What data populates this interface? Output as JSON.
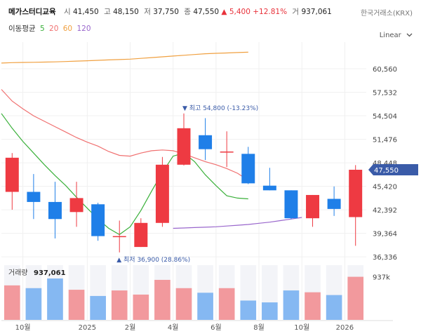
{
  "header": {
    "name": "메가스터디교육",
    "open_label": "시",
    "open": "41,450",
    "high_label": "고",
    "high": "48,150",
    "low_label": "저",
    "low": "37,750",
    "close_label": "종",
    "close": "47,550",
    "change": "▲ 5,400",
    "change_pct": "+12.81%",
    "volume_label": "거",
    "volume": "937,061",
    "source": "한국거래소(KRX)"
  },
  "ma_legend": {
    "title": "이동평균",
    "items": [
      {
        "label": "5",
        "color": "#3ab03a"
      },
      {
        "label": "20",
        "color": "#f07070"
      },
      {
        "label": "60",
        "color": "#f0a040"
      },
      {
        "label": "120",
        "color": "#9966cc"
      }
    ]
  },
  "scale_selector": {
    "label": "Linear",
    "icon": "chevron-down-icon"
  },
  "colors": {
    "up": "#ee3a42",
    "down": "#1f7fe8",
    "vol_up": "#f2999d",
    "vol_down": "#85b8f2",
    "price_tag": "#3a5ba8"
  },
  "chart_data": {
    "type": "candlestick",
    "interval": "monthly",
    "x_labels": [
      "10월",
      "2025",
      "2월",
      "4월",
      "6월",
      "8월",
      "10월",
      "2026"
    ],
    "x_label_positions": [
      0.5,
      3.5,
      5.5,
      7.5,
      9.5,
      11.5,
      13.5,
      15.5
    ],
    "y_ticks": [
      "60,560",
      "57,532",
      "54,504",
      "51,476",
      "48,448",
      "45,420",
      "42,392",
      "39,364",
      "36,336"
    ],
    "y_tick_values": [
      60560,
      57532,
      54504,
      51476,
      48448,
      45420,
      42392,
      39364,
      36336
    ],
    "ylim": [
      35800,
      64000
    ],
    "candles": [
      {
        "open": 44700,
        "high": 49700,
        "low": 42400,
        "close": 49100
      },
      {
        "open": 44700,
        "high": 47000,
        "low": 41200,
        "close": 43400
      },
      {
        "open": 43400,
        "high": 46000,
        "low": 38700,
        "close": 41200
      },
      {
        "open": 42100,
        "high": 46000,
        "low": 40200,
        "close": 43900
      },
      {
        "open": 43100,
        "high": 43300,
        "low": 38400,
        "close": 39000
      },
      {
        "open": 39000,
        "high": 41000,
        "low": 36900,
        "close": 39000
      },
      {
        "open": 37600,
        "high": 41300,
        "low": 37600,
        "close": 40700
      },
      {
        "open": 40700,
        "high": 49200,
        "low": 40200,
        "close": 48200
      },
      {
        "open": 48200,
        "high": 54800,
        "low": 48100,
        "close": 52900
      },
      {
        "open": 52000,
        "high": 54200,
        "low": 48800,
        "close": 50200
      },
      {
        "open": 49800,
        "high": 52500,
        "low": 47900,
        "close": 49900
      },
      {
        "open": 49600,
        "high": 50500,
        "low": 45700,
        "close": 45800
      },
      {
        "open": 45500,
        "high": 47800,
        "low": 44900,
        "close": 44900
      },
      {
        "open": 44900,
        "high": 44900,
        "low": 41200,
        "close": 41300
      },
      {
        "open": 41300,
        "high": 44300,
        "low": 40200,
        "close": 44300
      },
      {
        "open": 43800,
        "high": 45400,
        "low": 41600,
        "close": 42500
      },
      {
        "open": 41450,
        "high": 48150,
        "low": 37750,
        "close": 47550
      }
    ],
    "ma5": [
      54800,
      52900,
      51200,
      49700,
      48200,
      46800,
      45500,
      44000,
      42600,
      41200,
      40000,
      39200,
      40200,
      42300,
      44800,
      47200,
      49300,
      49700,
      48600,
      46900,
      45500,
      44200,
      43900,
      43800
    ],
    "ma20": [
      57900,
      56400,
      55400,
      54500,
      53800,
      53100,
      52400,
      51700,
      51100,
      50600,
      49900,
      49400,
      49300,
      49700,
      50000,
      50100,
      50000,
      49600,
      49100,
      48600,
      48200,
      47700,
      47100,
      46200
    ],
    "ma60": [
      61300,
      61350,
      61380,
      61400,
      61420,
      61450,
      61500,
      61550,
      61600,
      61650,
      61700,
      61750,
      61800,
      61900,
      62000,
      62100,
      62200,
      62300,
      62400,
      62500,
      62550,
      62600,
      62650,
      62700
    ],
    "ma120": [
      40000,
      40050,
      40100,
      40150,
      40200,
      40300,
      40400,
      40500,
      40650,
      40800,
      41000,
      41200,
      41400
    ],
    "annotations": {
      "high": {
        "text": "▼ 최고 54,800 (-13.23%)",
        "index": 8,
        "value": 54800
      },
      "low": {
        "text": "▲ 최저 36,900 (28.86%)",
        "index": 5,
        "value": 36900
      }
    },
    "last_price": "47,550",
    "volume": {
      "label": "거래량",
      "last_value": "937,061",
      "tick": "937k",
      "max": 1190000,
      "values": [
        750000,
        690000,
        900000,
        655000,
        520000,
        640000,
        550000,
        870000,
        690000,
        590000,
        690000,
        420000,
        380000,
        640000,
        600000,
        540000,
        937061
      ]
    }
  }
}
